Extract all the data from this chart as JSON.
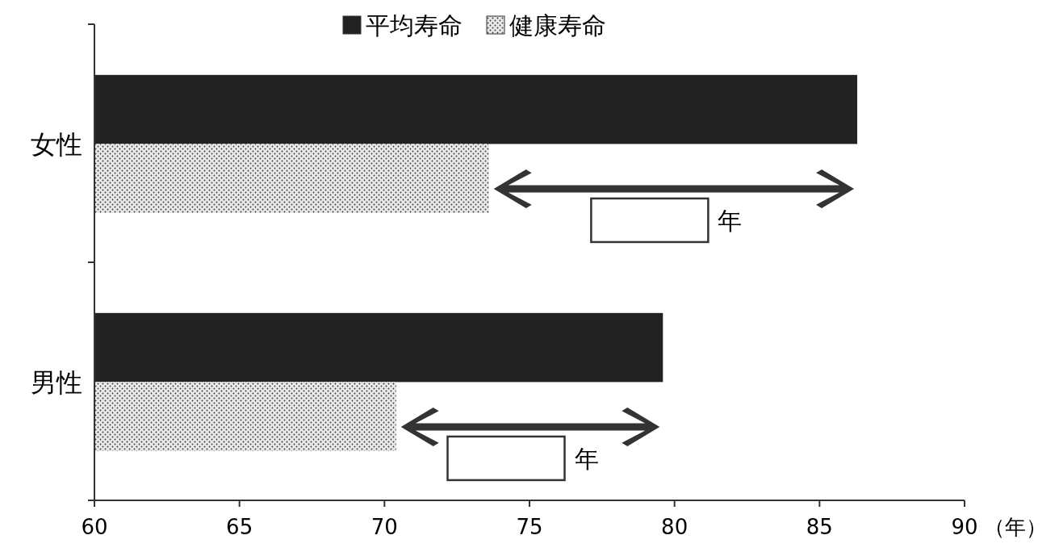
{
  "chart_data": {
    "type": "bar",
    "orientation": "horizontal",
    "categories": [
      "女性",
      "男性"
    ],
    "series": [
      {
        "name": "平均寿命",
        "color": "#222222",
        "values": [
          86.3,
          79.6
        ]
      },
      {
        "name": "健康寿命",
        "color": "#e8e8e8",
        "values": [
          73.6,
          70.4
        ]
      }
    ],
    "xlim": [
      60,
      90
    ],
    "xticks": [
      60,
      65,
      70,
      75,
      80,
      85,
      90
    ],
    "xlabel": "（年）",
    "legend": "top",
    "grid": false,
    "annotations": [
      "年",
      "年"
    ]
  }
}
